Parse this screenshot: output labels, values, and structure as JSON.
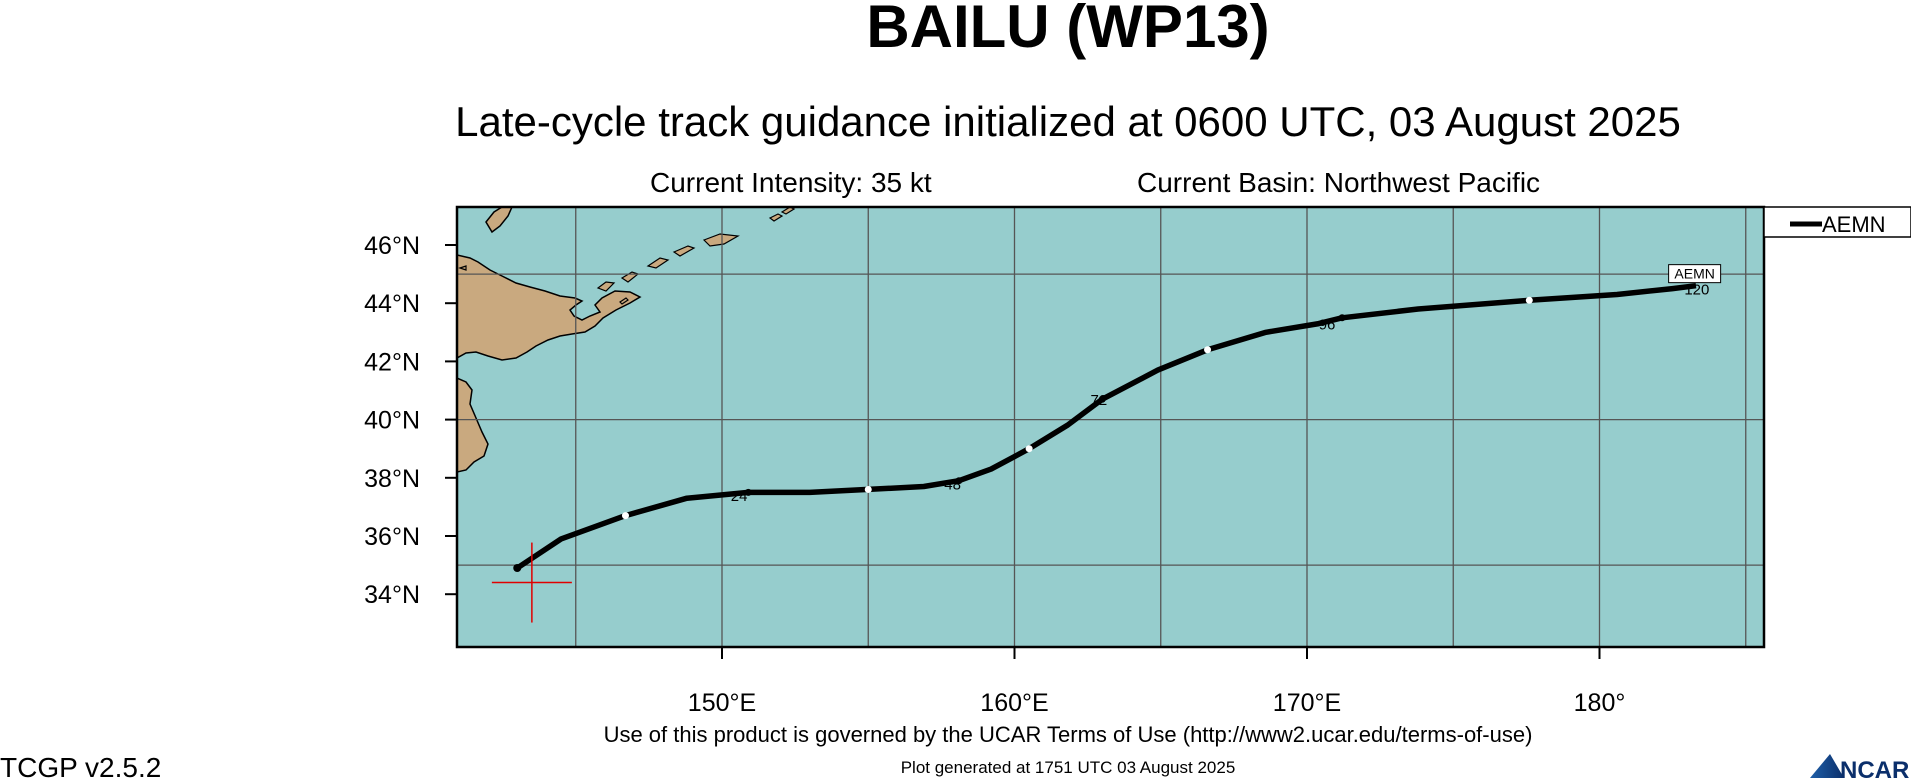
{
  "title": "BAILU (WP13)",
  "subtitle": "Late-cycle track guidance initialized at 0600 UTC, 03 August 2025",
  "current_intensity": "Current Intensity: 35 kt",
  "current_basin": "Current Basin: Northwest Pacific",
  "legend": {
    "model": "AEMN"
  },
  "axes": {
    "lat_labels": [
      "46°N",
      "44°N",
      "42°N",
      "40°N",
      "38°N",
      "36°N",
      "34°N"
    ],
    "lon_labels": [
      "150°E",
      "160°E",
      "170°E",
      "180°"
    ]
  },
  "track": {
    "name": "AEMN",
    "points_lonlat": [
      [
        143.0,
        34.9
      ],
      [
        144.5,
        35.9
      ],
      [
        146.7,
        36.7
      ],
      [
        148.8,
        37.3
      ],
      [
        150.9,
        37.5
      ],
      [
        153.0,
        37.5
      ],
      [
        155.0,
        37.6
      ],
      [
        156.9,
        37.7
      ],
      [
        158.1,
        37.9
      ],
      [
        159.2,
        38.3
      ],
      [
        160.5,
        39.0
      ],
      [
        161.8,
        39.8
      ],
      [
        163.0,
        40.7
      ],
      [
        164.9,
        41.7
      ],
      [
        166.6,
        42.4
      ],
      [
        168.6,
        43.0
      ],
      [
        170.4,
        43.3
      ],
      [
        171.2,
        43.5
      ],
      [
        173.8,
        43.8
      ],
      [
        177.6,
        44.1
      ],
      [
        180.6,
        44.3
      ],
      [
        182.5,
        44.5
      ],
      [
        183.3,
        44.6
      ]
    ],
    "hour_labels": [
      {
        "text": "24",
        "lon": 150.3,
        "lat": 37.2
      },
      {
        "text": "48",
        "lon": 157.6,
        "lat": 37.6
      },
      {
        "text": "72",
        "lon": 162.6,
        "lat": 40.5
      },
      {
        "text": "96",
        "lon": 170.4,
        "lat": 43.1
      },
      {
        "text": "120",
        "lon": 182.9,
        "lat": 44.3
      }
    ],
    "end_label": "AEMN"
  },
  "current_position": {
    "lon": 143.5,
    "lat": 34.4
  },
  "colors": {
    "ocean": "#96cdcd",
    "land": "#c9a97f",
    "track": "#000000",
    "current_marker": "#e00000",
    "grid": "#555555"
  },
  "terms": "Use of this product is governed by the UCAR Terms of Use (http://www2.ucar.edu/terms-of-use)",
  "generated": "Plot generated at 1751 UTC   03 August 2025",
  "version": "TCGP v2.5.2",
  "logo_text": "NCAR"
}
